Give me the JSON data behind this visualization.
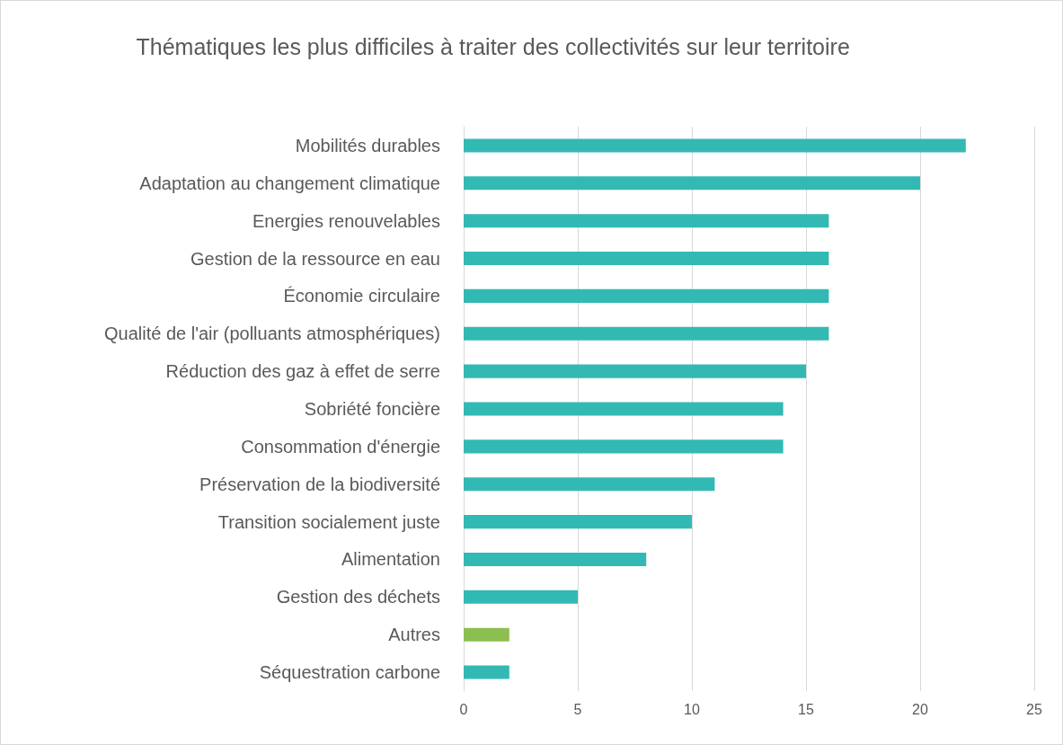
{
  "chart_data": {
    "type": "bar",
    "orientation": "horizontal",
    "title": "Thématiques les plus difficiles à traiter des collectivités sur leur territoire",
    "categories": [
      "Mobilités durables",
      "Adaptation au changement climatique",
      "Energies renouvelables",
      "Gestion de la ressource en eau",
      "Économie circulaire",
      "Qualité de l'air (polluants atmosphériques)",
      "Réduction des gaz à effet de serre",
      "Sobriété foncière",
      "Consommation d'énergie",
      "Préservation de la biodiversité",
      "Transition socialement juste",
      "Alimentation",
      "Gestion des déchets",
      "Autres",
      "Séquestration carbone"
    ],
    "values": [
      22,
      20,
      16,
      16,
      16,
      16,
      15,
      14,
      14,
      11,
      10,
      8,
      5,
      2,
      2
    ],
    "colors": [
      "#33b9b3",
      "#33b9b3",
      "#33b9b3",
      "#33b9b3",
      "#33b9b3",
      "#33b9b3",
      "#33b9b3",
      "#33b9b3",
      "#33b9b3",
      "#33b9b3",
      "#33b9b3",
      "#33b9b3",
      "#33b9b3",
      "#8cbf4f",
      "#33b9b3"
    ],
    "xlim": [
      0,
      25
    ],
    "xticks": [
      0,
      5,
      10,
      15,
      20,
      25
    ],
    "grid": "x"
  }
}
